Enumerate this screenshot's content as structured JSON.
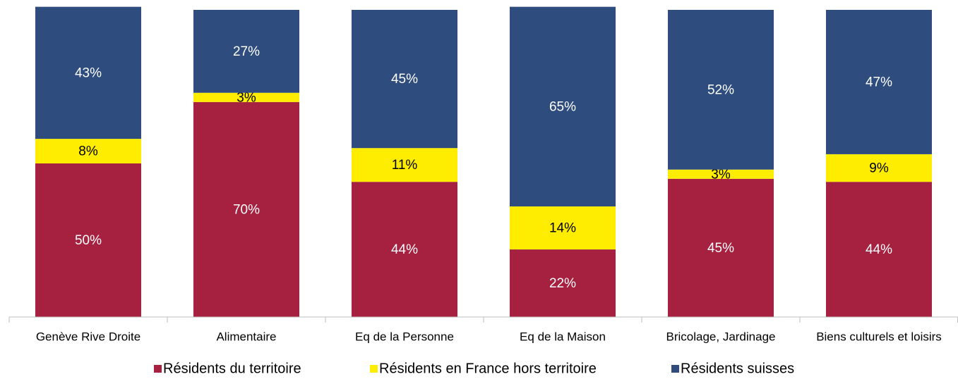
{
  "chart_data": {
    "type": "stacked_bar",
    "categories": [
      "Genève Rive Droite",
      "Alimentaire",
      "Eq de la Personne",
      "Eq de la Maison",
      "Bricolage, Jardinage",
      "Biens culturels et loisirs"
    ],
    "series": [
      {
        "name": "Résidents du territoire",
        "color": "#a6213f",
        "values": [
          50,
          70,
          44,
          22,
          45,
          44
        ],
        "value_labels": [
          "50%",
          "70%",
          "44%",
          "22%",
          "45%",
          "44%"
        ]
      },
      {
        "name": "Résidents en France hors territoire",
        "color": "#ffed00",
        "values": [
          8,
          3,
          11,
          14,
          3,
          9
        ],
        "value_labels": [
          "8%",
          "3%",
          "11%",
          "14%",
          "3%",
          "9%"
        ]
      },
      {
        "name": "Résidents suisses",
        "color": "#2e4d7e",
        "values": [
          43,
          27,
          45,
          65,
          52,
          47
        ],
        "value_labels": [
          "43%",
          "27%",
          "45%",
          "65%",
          "52%",
          "47%"
        ]
      }
    ],
    "ylim": [
      0,
      100
    ],
    "legend": "bottom"
  }
}
